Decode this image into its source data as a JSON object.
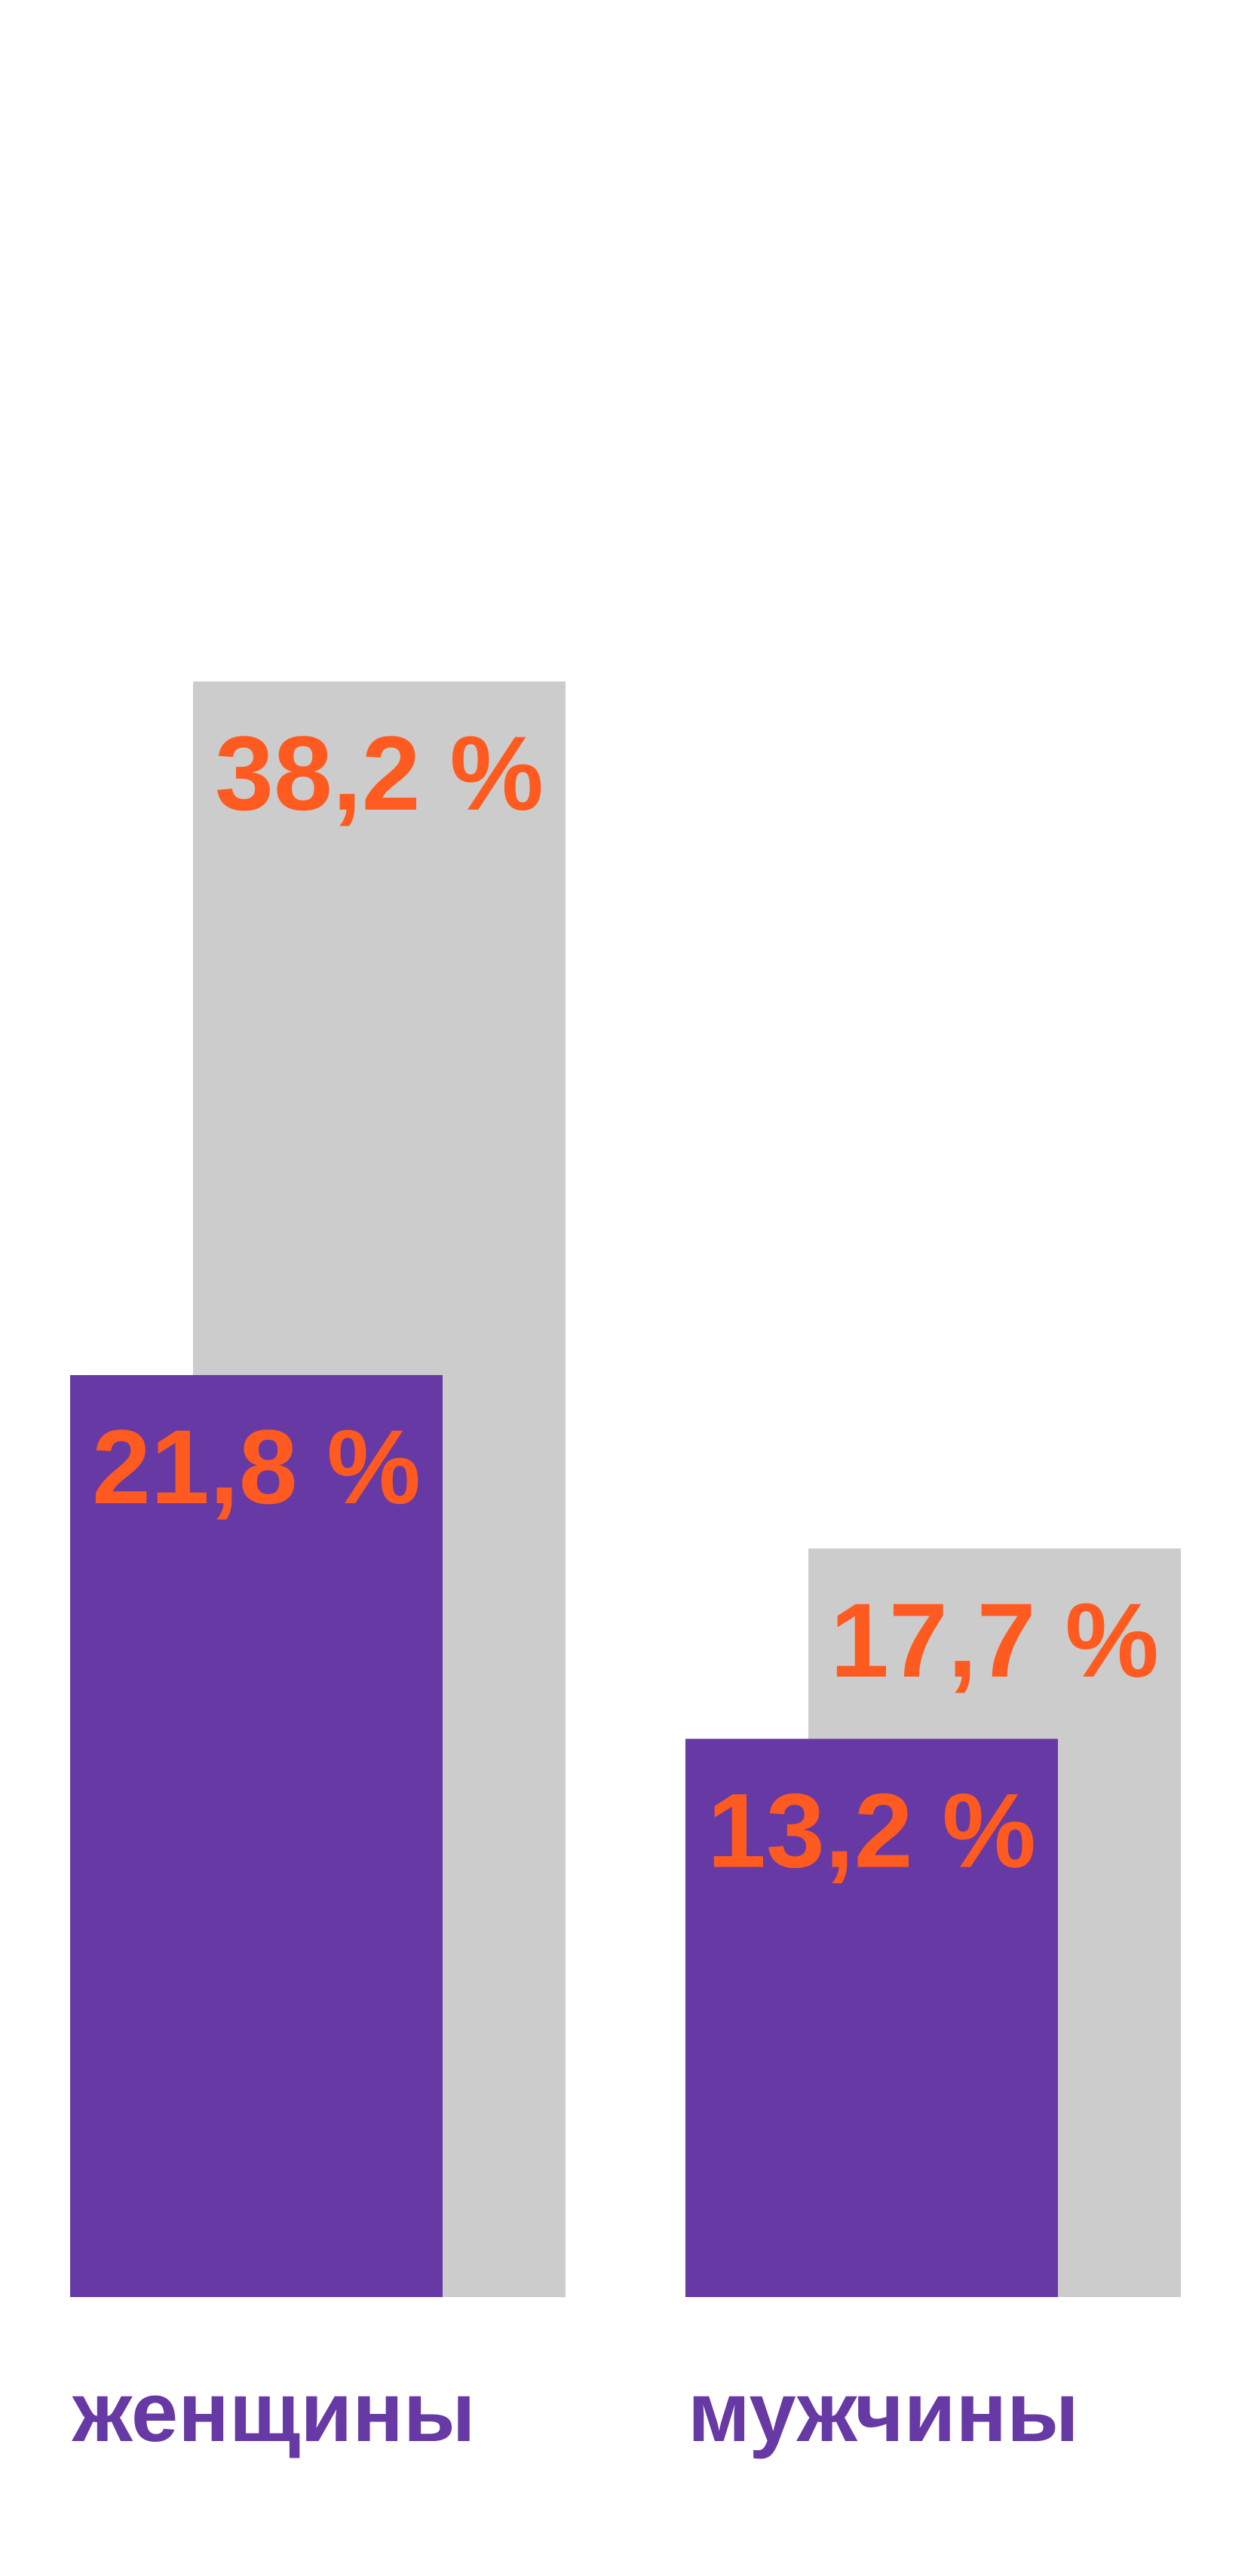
{
  "chart_data": {
    "type": "bar",
    "categories": [
      "женщины",
      "мужчины"
    ],
    "series": [
      {
        "color": "#cccccc",
        "values": [
          38.2,
          17.7
        ],
        "value_labels": [
          "38,2 %",
          "17,7 %"
        ]
      },
      {
        "color": "#6639a4",
        "values": [
          21.8,
          13.2
        ],
        "value_labels": [
          "21,8 %",
          "13,2 %"
        ]
      }
    ],
    "label_color": "#ff5a1f",
    "category_color": "#6639a4",
    "ylim": [
      0,
      40
    ]
  }
}
